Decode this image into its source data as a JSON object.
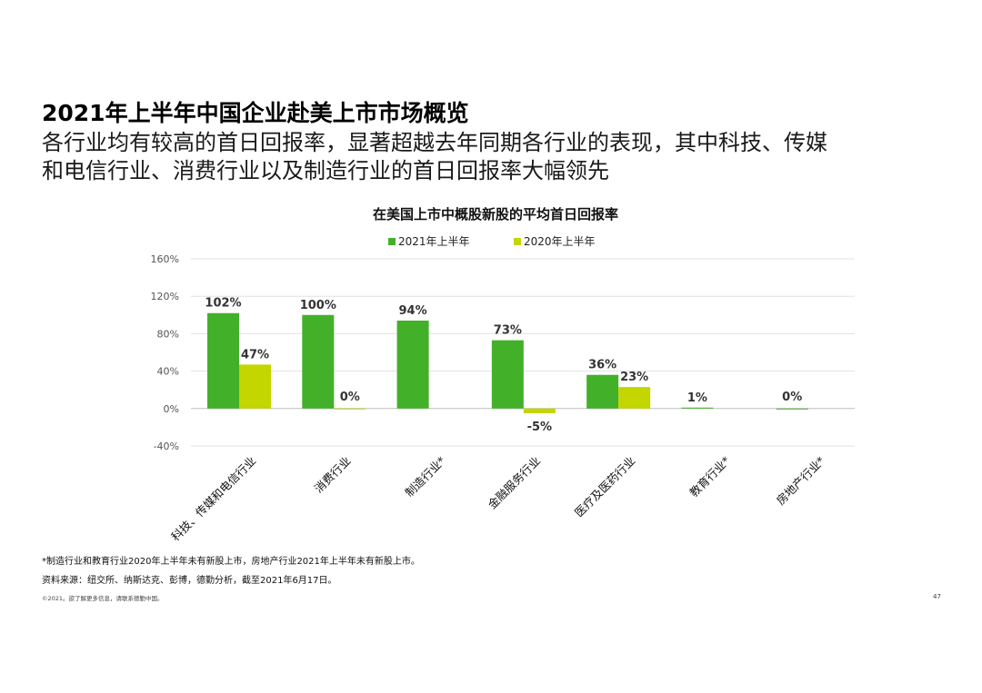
{
  "heading": {
    "main": "2021年上半年中国企业赴美上市市场概览",
    "sub_line1": "各行业均有较高的首日回报率，显著超越去年同期各行业的表现，其中科技、传媒",
    "sub_line2": "和电信行业、消费行业以及制造行业的首日回报率大幅领先"
  },
  "chart_data": {
    "type": "bar",
    "title": "在美国上市中概股新股的平均首日回报率",
    "categories": [
      "科技、传媒和电信行业",
      "消费行业",
      "制造行业*",
      "金融服务行业",
      "医疗及医药行业",
      "教育行业*",
      "房地产行业*"
    ],
    "series": [
      {
        "name": "2021年上半年",
        "values": [
          102,
          100,
          94,
          73,
          36,
          1,
          0
        ],
        "labels": [
          "102%",
          "100%",
          "94%",
          "73%",
          "36%",
          "1%",
          "0%"
        ],
        "color": "#43b02a"
      },
      {
        "name": "2020年上半年",
        "values": [
          47,
          0,
          null,
          -5,
          23,
          null,
          null
        ],
        "labels": [
          "47%",
          "0%",
          null,
          "-5%",
          "23%",
          null,
          null
        ],
        "color": "#c4d600"
      }
    ],
    "yticks": [
      160,
      120,
      80,
      40,
      0,
      -40
    ],
    "ytick_labels": [
      "160%",
      "120%",
      "80%",
      "40%",
      "0%",
      "-40%"
    ],
    "ylim": [
      -40,
      160
    ],
    "grid": true,
    "legend_position": "top"
  },
  "footnotes": {
    "note": "*制造行业和教育行业2020年上半年未有新股上市，房地产行业2021年上半年未有新股上市。",
    "source": "资料来源：纽交所、纳斯达克、彭博，德勤分析，截至2021年6月17日。",
    "copyright": "©2021。欲了解更多信息，请联系德勤中国。",
    "page_number": "47"
  }
}
